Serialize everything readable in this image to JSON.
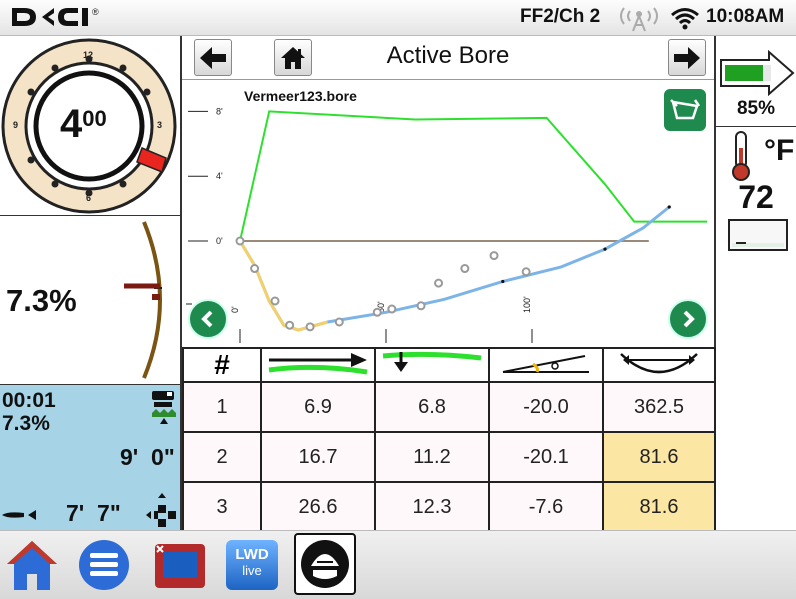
{
  "status_bar": {
    "logo_text": "DCI",
    "frequency_channel": "FF2/Ch 2",
    "time": "10:08AM",
    "icons": [
      "dci-logo-icon",
      "antenna-icon",
      "wifi-icon"
    ]
  },
  "roll_dial": {
    "value_main": "4",
    "value_sup": "00",
    "labels": [
      "12",
      "3",
      "6",
      "9"
    ],
    "colors": {
      "ring_bg": "#f5e3c7",
      "marker": "#e8251e",
      "ring_border": "#222222"
    }
  },
  "pitch_gauge": {
    "value": "7.3%",
    "colors": {
      "arc": "#7a5412",
      "needle": "#7a1a10"
    }
  },
  "depth_panel": {
    "time": "00:01",
    "pitch": "7.3%",
    "depth": "9'  0\"",
    "distance": "7'  7\"",
    "icons": [
      "drill-rig-icon",
      "drill-bit-icon",
      "target-crosshair-icon"
    ],
    "colors": {
      "background": "#a7d3e6"
    }
  },
  "nav": {
    "title": "Active Bore",
    "icons": [
      "arrow-left-icon",
      "home-icon",
      "arrow-right-icon"
    ]
  },
  "plot": {
    "file_name": "Vermeer123.bore",
    "icons": [
      "drill-view-icon",
      "scroll-left-icon",
      "scroll-right-icon"
    ],
    "colors": {
      "depth_line": "#2ee02e",
      "ground_line": "#9a8a7a",
      "bore_path": "#7db4e8",
      "bore_path_start": "#f2d06a",
      "markers": "#999999"
    }
  },
  "chart_data": {
    "type": "line",
    "title": "Vermeer123.bore",
    "xlabel": "",
    "ylabel": "",
    "x_ticks": [
      "0'",
      "50'",
      "100'"
    ],
    "y_ticks": [
      "8'",
      "4'",
      "0'"
    ],
    "series": [
      {
        "points": [
          [
            0,
            0
          ],
          [
            10,
            8
          ],
          [
            60,
            7.5
          ],
          [
            105,
            7.6
          ],
          [
            125,
            3.5
          ],
          [
            135,
            1.2
          ],
          [
            160,
            1.2
          ]
        ]
      },
      {
        "points": [
          [
            0,
            0
          ],
          [
            5,
            -1.5
          ],
          [
            10,
            -3.7
          ],
          [
            15,
            -5.2
          ],
          [
            20,
            -5.5
          ],
          [
            30,
            -5.0
          ],
          [
            50,
            -4.4
          ],
          [
            70,
            -3.6
          ],
          [
            90,
            -2.5
          ],
          [
            110,
            -1.6
          ],
          [
            125,
            -0.5
          ],
          [
            138,
            0.8
          ],
          [
            147,
            2.1
          ]
        ]
      }
    ],
    "rod_points": [
      [
        0,
        0
      ],
      [
        5,
        -1.7
      ],
      [
        12,
        -3.7
      ],
      [
        17,
        -5.2
      ],
      [
        24,
        -5.3
      ],
      [
        34,
        -5.0
      ],
      [
        47,
        -4.4
      ],
      [
        52,
        -4.2
      ],
      [
        62,
        -4.0
      ],
      [
        68,
        -2.6
      ],
      [
        77,
        -1.7
      ],
      [
        87,
        -0.9
      ],
      [
        98,
        -1.9
      ]
    ]
  },
  "table": {
    "header_hash": "#",
    "header_icons": [
      "rod-length-icon",
      "depth-change-icon",
      "pitch-angle-icon",
      "bend-radius-icon"
    ],
    "rows": [
      {
        "num": "1",
        "c1": "6.9",
        "c2": "6.8",
        "c3": "-20.0",
        "c4": "362.5",
        "highlight": false
      },
      {
        "num": "2",
        "c1": "16.7",
        "c2": "11.2",
        "c3": "-20.1",
        "c4": "81.6",
        "highlight": true
      },
      {
        "num": "3",
        "c1": "26.6",
        "c2": "12.3",
        "c3": "-7.6",
        "c4": "81.6",
        "highlight": true
      }
    ],
    "colors": {
      "highlight": "#fbe6a4",
      "row_bg": "#fff8fa"
    }
  },
  "right_panel": {
    "battery": "85%",
    "temp_unit": "°F",
    "temp_value": "72",
    "icons": [
      "battery-icon",
      "thermometer-icon",
      "temperature-gauge-icon"
    ],
    "colors": {
      "battery_fill": "#20a020",
      "thermometer": "#c0392b"
    }
  },
  "bottom_bar": {
    "items": [
      {
        "name": "home",
        "icon": "home-icon"
      },
      {
        "name": "menu",
        "icon": "menu-icon"
      },
      {
        "name": "locate",
        "icon": "locate-screen-icon"
      },
      {
        "name": "lwd-live",
        "icon": "lwd-live-icon",
        "label_top": "LWD",
        "label_bottom": "live"
      },
      {
        "name": "drill-head",
        "icon": "drill-head-icon"
      }
    ]
  }
}
